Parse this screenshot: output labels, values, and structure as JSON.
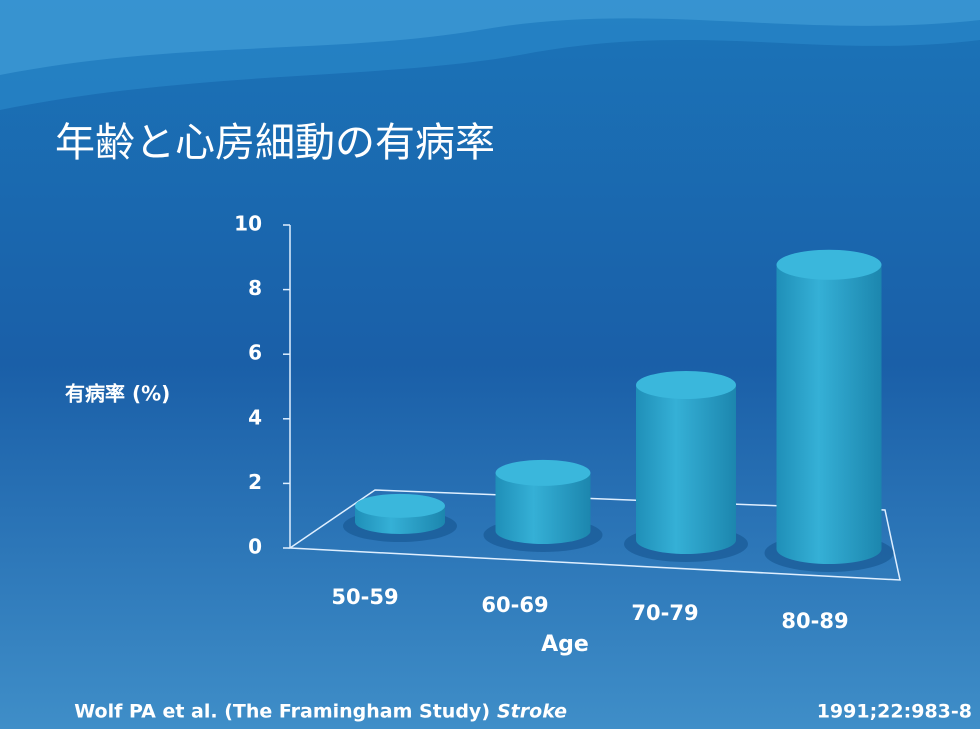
{
  "chart_data": {
    "type": "bar",
    "title": "年齢と心房細動の有病率",
    "y_label": "有病率 (%)",
    "x_label": "Age",
    "categories": [
      "50-59",
      "60-69",
      "70-79",
      "80-89"
    ],
    "values": [
      0.5,
      1.8,
      4.8,
      8.8
    ],
    "color": "#2aa3c9",
    "ylim": [
      0,
      10
    ],
    "yticks": [
      0,
      2,
      4,
      6,
      8,
      10
    ],
    "source": {
      "authors": "Wolf PA et al. (The Framingham Study)",
      "journal": "Stroke",
      "citation": "1991;22:983-8"
    }
  }
}
